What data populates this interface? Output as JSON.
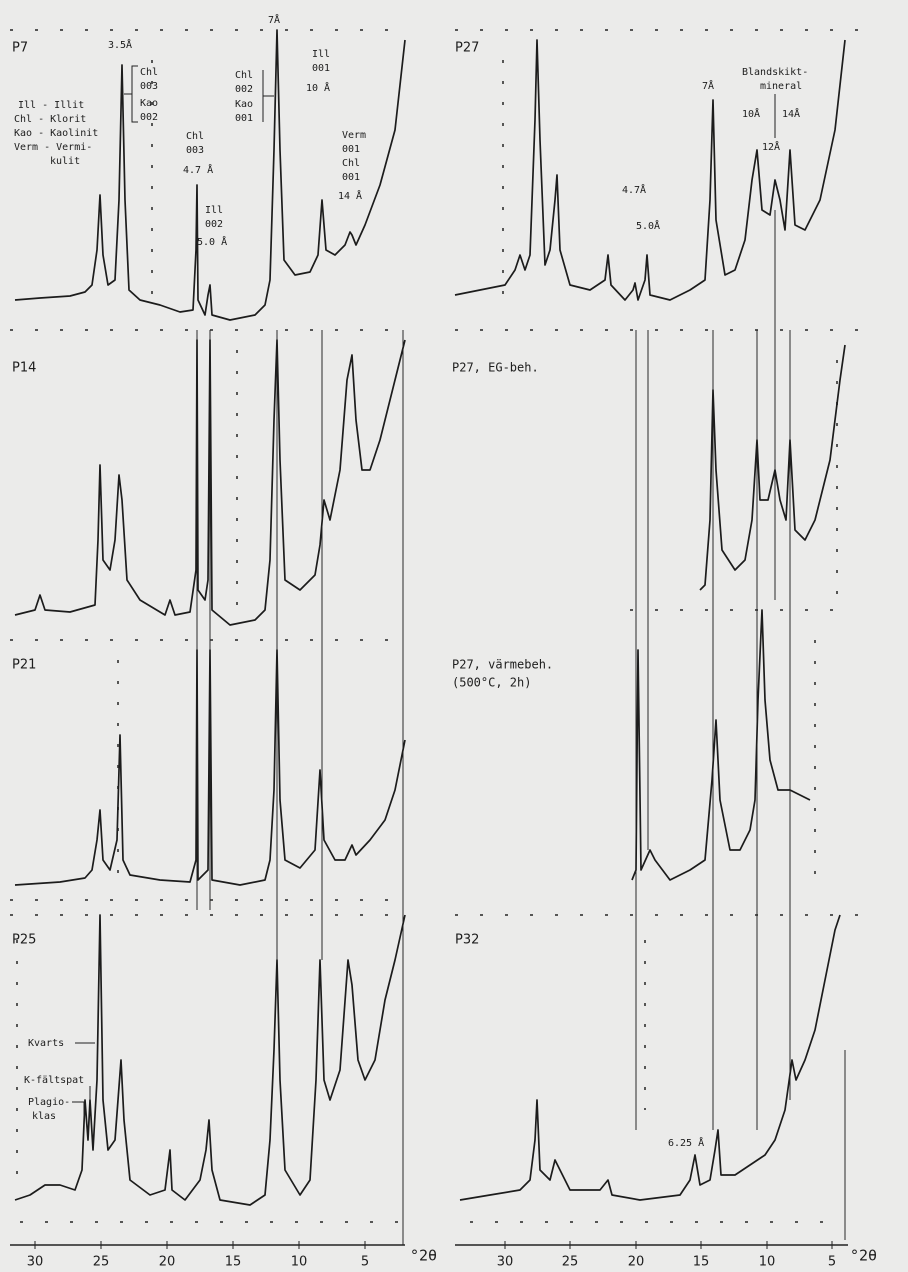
{
  "panels": [
    {
      "label": "P7"
    },
    {
      "label": "P27"
    },
    {
      "label": "P14"
    },
    {
      "label": "P27, EG-beh."
    },
    {
      "label": "P21"
    },
    {
      "label": "P27, värmebeh.",
      "sublabel": "(500°C, 2h)"
    },
    {
      "label": "P25"
    },
    {
      "label": "P32"
    }
  ],
  "legend": [
    "Ill - Illit",
    "Chl - Klorit",
    "Kao - Kaolinit",
    "Verm - Vermi-",
    "kulit"
  ],
  "annotations": {
    "p7": [
      "3.5Å",
      "Chl",
      "003",
      "Kao",
      "002",
      "Chl",
      "003",
      "4.7 Å",
      "Ill",
      "002",
      "5.0 Å",
      "7Å",
      "Chl",
      "002",
      "Kao",
      "001",
      "Ill",
      "001",
      "10 Å",
      "Verm",
      "001",
      "Chl",
      "001",
      "14 Å"
    ],
    "p27": [
      "4.7Å",
      "5.0Å",
      "7Å",
      "Blandskikt-",
      "mineral",
      "10Å",
      "12Å",
      "14Å"
    ],
    "p25": [
      "Kvarts",
      "K-fältspat",
      "Plagio-",
      "klas"
    ],
    "p32": [
      "6.25 Å"
    ]
  },
  "axes": [
    {
      "ticks": [
        "30",
        "25",
        "20",
        "15",
        "10",
        "5"
      ],
      "unit": "°2θ"
    },
    {
      "ticks": [
        "30",
        "25",
        "20",
        "15",
        "10",
        "5"
      ],
      "unit": "°2θ"
    }
  ]
}
